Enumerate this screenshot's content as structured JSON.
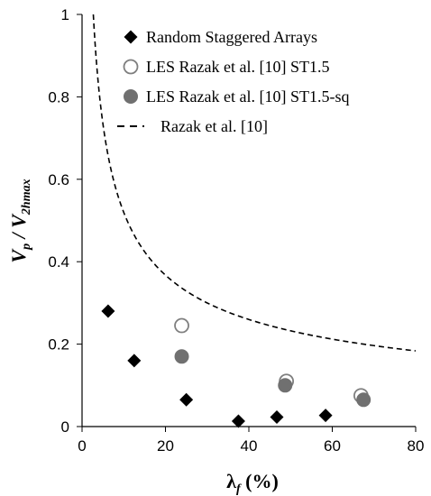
{
  "chart_data": {
    "type": "scatter",
    "xlabel": {
      "main": "λ",
      "sub": "f",
      "rest": " (%)"
    },
    "ylabel": {
      "v1": "V",
      "s1": "p",
      "slash": " / ",
      "v2": "V",
      "s2": "2hmax"
    },
    "xlim": [
      0,
      80
    ],
    "ylim": [
      0,
      1
    ],
    "xticks": [
      "0",
      "20",
      "40",
      "60",
      "80"
    ],
    "yticks": [
      "0",
      "0.2",
      "0.4",
      "0.6",
      "0.8",
      "1"
    ],
    "xtick_values": [
      0,
      20,
      40,
      60,
      80
    ],
    "ytick_values": [
      0,
      0.2,
      0.4,
      0.6,
      0.8,
      1
    ],
    "grid": false,
    "legend_position": "top-right",
    "series": [
      {
        "name": "Random Staggered Arrays",
        "marker": "diamond",
        "color": "#000000",
        "points": [
          [
            6.25,
            0.28
          ],
          [
            12.5,
            0.16
          ],
          [
            25,
            0.065
          ],
          [
            37.5,
            0.013
          ],
          [
            46.7,
            0.023
          ],
          [
            58.4,
            0.027
          ]
        ]
      },
      {
        "name": "LES Razak et al. [10] ST1.5",
        "marker": "circle-open",
        "color": "#7f7f7f",
        "points": [
          [
            23.9,
            0.245
          ],
          [
            49.0,
            0.11
          ],
          [
            66.9,
            0.075
          ]
        ]
      },
      {
        "name": "LES Razak et al. [10] ST1.5-sq",
        "marker": "circle-filled",
        "color": "#707070",
        "points": [
          [
            23.9,
            0.17
          ],
          [
            48.7,
            0.1
          ],
          [
            67.5,
            0.065
          ]
        ]
      },
      {
        "name": "Razak et al. [10]",
        "marker": "dashed-line",
        "color": "#000000",
        "curve_a": 2.7,
        "curve_b": 0.5,
        "curve_x_range": [
          2.7,
          80
        ]
      }
    ]
  }
}
